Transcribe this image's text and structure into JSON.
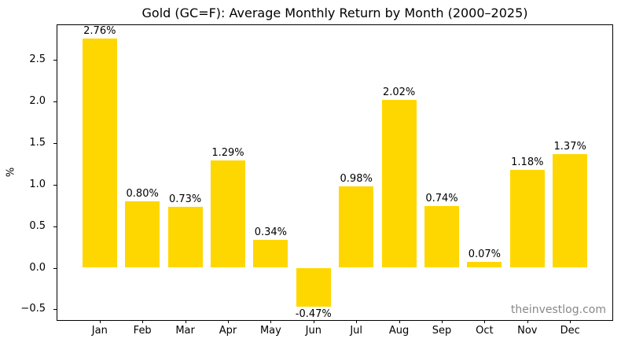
{
  "chart_data": {
    "type": "bar",
    "title": "Gold (GC=F): Average Monthly Return by Month (2000–2025)",
    "categories": [
      "Jan",
      "Feb",
      "Mar",
      "Apr",
      "May",
      "Jun",
      "Jul",
      "Aug",
      "Sep",
      "Oct",
      "Nov",
      "Dec"
    ],
    "values": [
      2.76,
      0.8,
      0.73,
      1.29,
      0.34,
      -0.47,
      0.98,
      2.02,
      0.74,
      0.07,
      1.18,
      1.37
    ],
    "bar_labels": [
      "2.76%",
      "0.80%",
      "0.73%",
      "1.29%",
      "0.34%",
      "-0.47%",
      "0.98%",
      "2.02%",
      "0.74%",
      "0.07%",
      "1.18%",
      "1.37%"
    ],
    "xlabel": "",
    "ylabel": "%",
    "ylim": [
      -0.63,
      2.92
    ],
    "xlim": [
      -0.99,
      11.99
    ],
    "ytick_values": [
      -0.5,
      0.0,
      0.5,
      1.0,
      1.5,
      2.0,
      2.5
    ],
    "ytick_labels": [
      "−0.5",
      "0.0",
      "0.5",
      "1.0",
      "1.5",
      "2.0",
      "2.5"
    ],
    "bar_color": "#FFD700",
    "bar_width": 0.8,
    "grid": false,
    "legend": null,
    "watermark": "theinvestlog.com"
  }
}
